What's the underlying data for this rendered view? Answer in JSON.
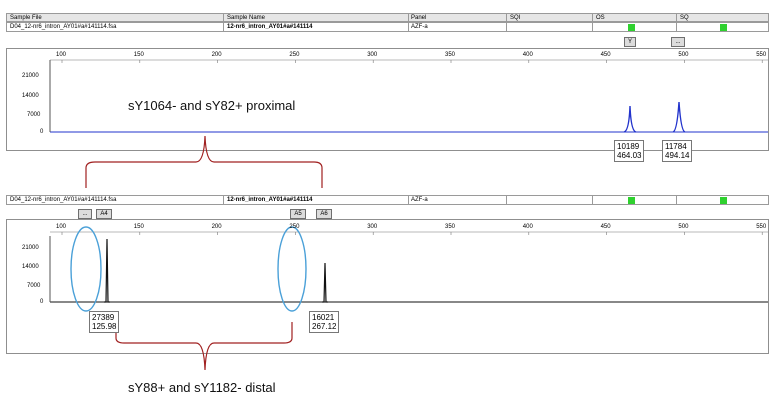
{
  "table": {
    "headers": [
      "Sample File",
      "Sample Name",
      "Panel",
      "SQI",
      "OS",
      "SQ"
    ]
  },
  "pane1": {
    "sample_file": "D04_12-nr6_intron_AY01#a#141114.fsa",
    "sample_name": "12-nr6_intron_AY01#a#141114",
    "panel": "AZF-a",
    "allele_buttons": [
      "Y",
      "..."
    ],
    "x_ticks": [
      "100",
      "150",
      "200",
      "250",
      "300",
      "350",
      "400",
      "450",
      "500",
      "550"
    ],
    "y_ticks": [
      "21000",
      "14000",
      "7000",
      "0"
    ],
    "peaks": [
      {
        "height": "10189",
        "size": "464.03"
      },
      {
        "height": "11784",
        "size": "494.14"
      }
    ]
  },
  "pane2": {
    "sample_file": "D04_12-nr6_intron_AY01#a#141114.fsa",
    "sample_name": "12-nr6_intron_AY01#a#141114",
    "panel": "AZF-a",
    "allele_buttons": [
      "...",
      "A4",
      "A5",
      "A6"
    ],
    "x_ticks": [
      "100",
      "150",
      "200",
      "250",
      "300",
      "350",
      "400",
      "450",
      "500",
      "550"
    ],
    "y_ticks": [
      "21000",
      "14000",
      "7000",
      "0"
    ],
    "peaks": [
      {
        "height": "27389",
        "size": "125.98"
      },
      {
        "height": "16021",
        "size": "267.12"
      }
    ]
  },
  "annotations": {
    "proximal": "sY1064- and sY82+ proximal",
    "distal": "sY88+ and sY1182- distal"
  },
  "colors": {
    "trace_blue": "#2233cc",
    "trace_black": "#111111",
    "bracket": "#a02020",
    "ellipse": "#4aa0d8",
    "quality_green": "#2fd12f"
  }
}
